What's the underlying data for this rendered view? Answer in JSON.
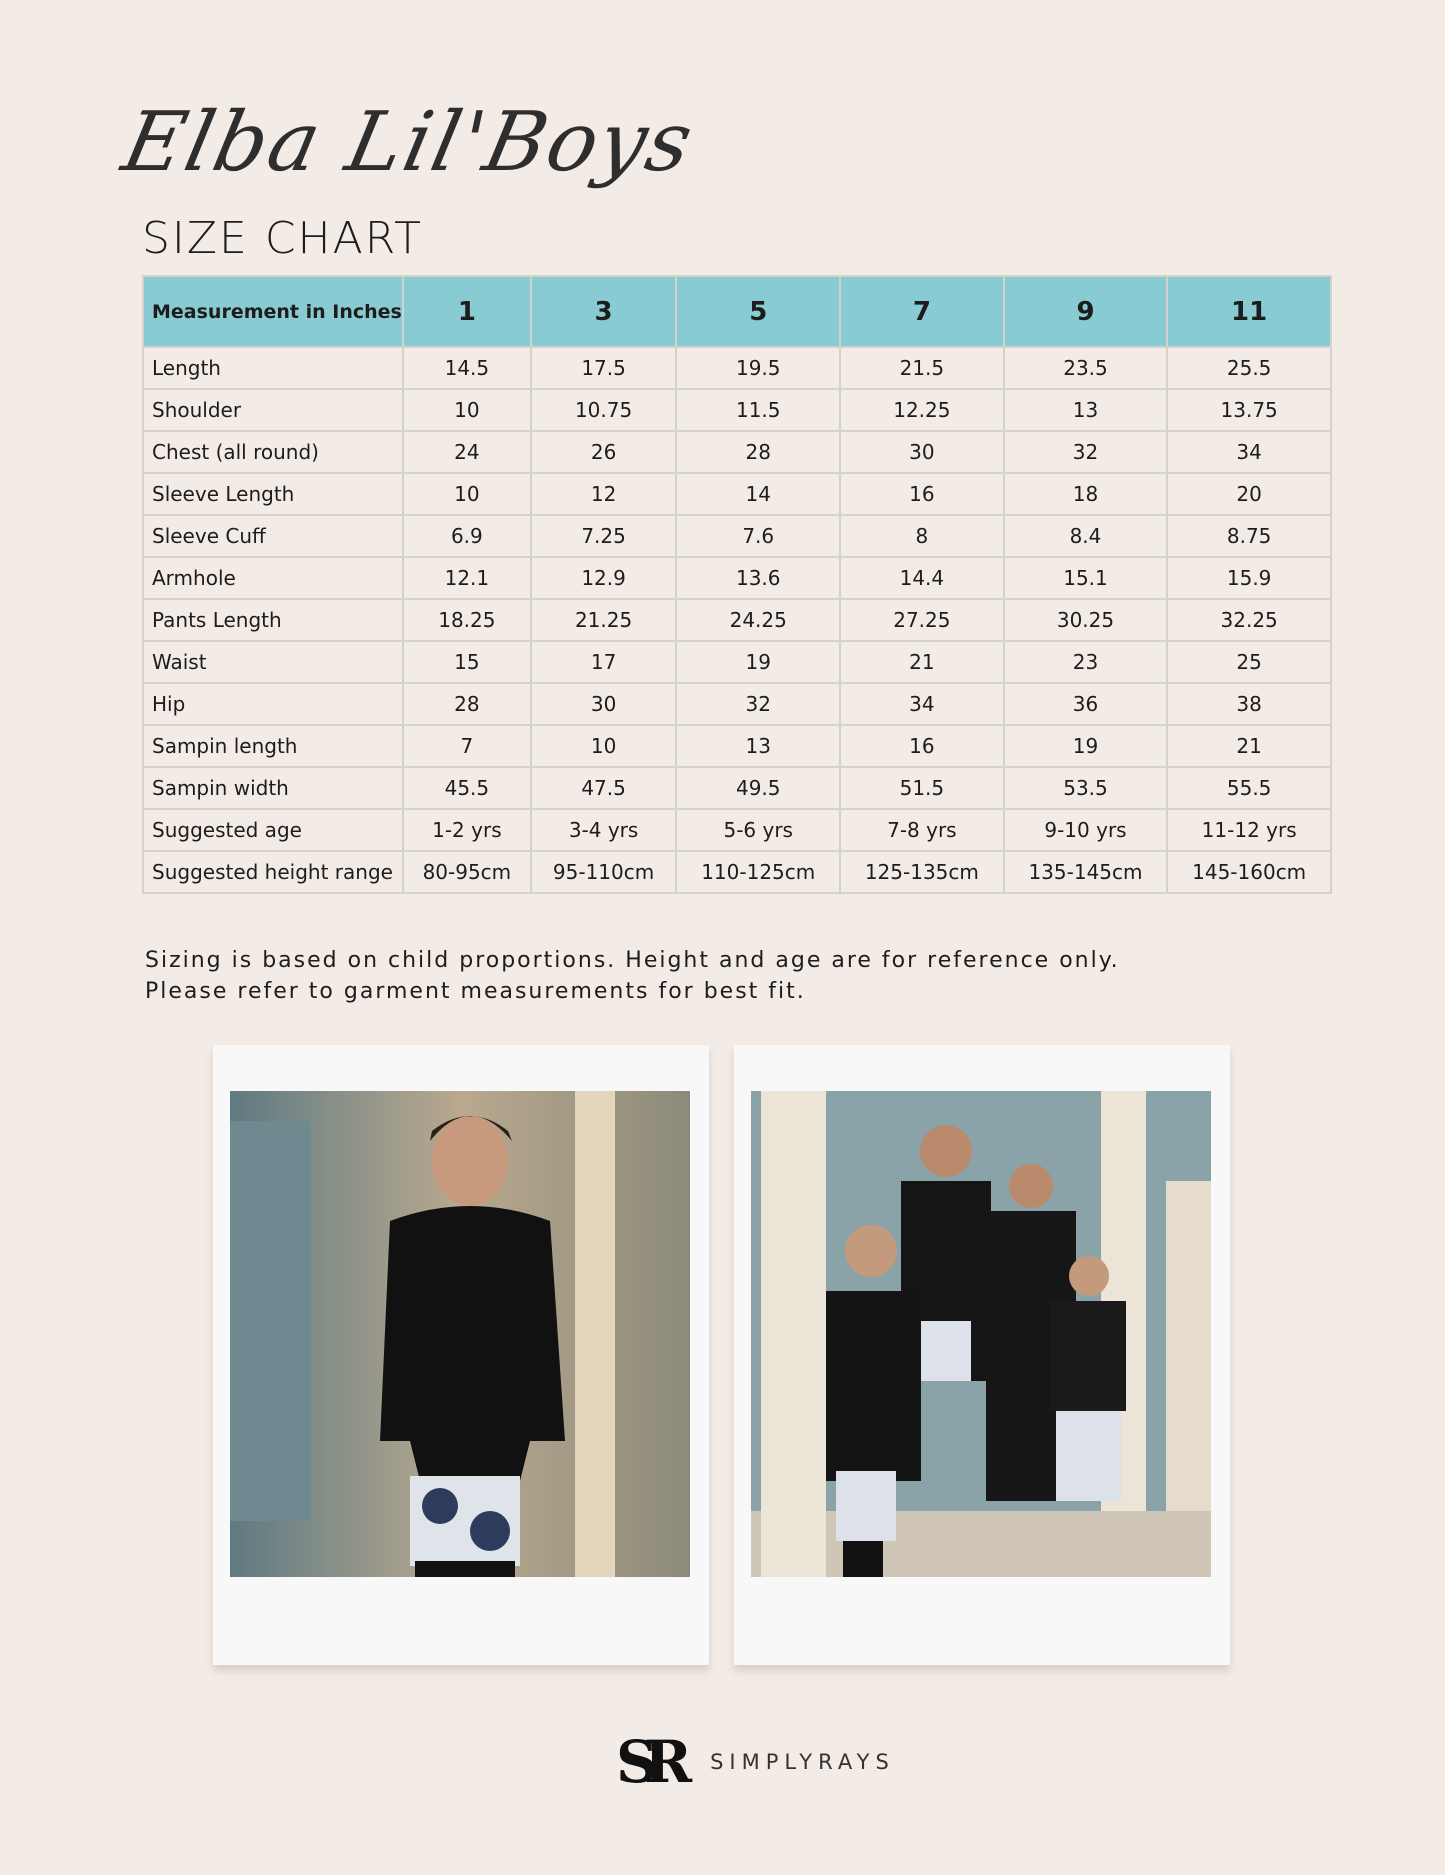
{
  "header": {
    "script_title": "Elba Lil'Boys",
    "subtitle": "SIZE CHART"
  },
  "table": {
    "columns": [
      "Measurement in Inches",
      "1",
      "3",
      "5",
      "7",
      "9",
      "11"
    ],
    "rows": [
      [
        "Length",
        "14.5",
        "17.5",
        "19.5",
        "21.5",
        "23.5",
        "25.5"
      ],
      [
        "Shoulder",
        "10",
        "10.75",
        "11.5",
        "12.25",
        "13",
        "13.75"
      ],
      [
        "Chest (all round)",
        "24",
        "26",
        "28",
        "30",
        "32",
        "34"
      ],
      [
        "Sleeve Length",
        "10",
        "12",
        "14",
        "16",
        "18",
        "20"
      ],
      [
        "Sleeve Cuff",
        "6.9",
        "7.25",
        "7.6",
        "8",
        "8.4",
        "8.75"
      ],
      [
        "Armhole",
        "12.1",
        "12.9",
        "13.6",
        "14.4",
        "15.1",
        "15.9"
      ],
      [
        "Pants Length",
        "18.25",
        "21.25",
        "24.25",
        "27.25",
        "30.25",
        "32.25"
      ],
      [
        "Waist",
        "15",
        "17",
        "19",
        "21",
        "23",
        "25"
      ],
      [
        "Hip",
        "28",
        "30",
        "32",
        "34",
        "36",
        "38"
      ],
      [
        "Sampin length",
        "7",
        "10",
        "13",
        "16",
        "19",
        "21"
      ],
      [
        "Sampin width",
        "45.5",
        "47.5",
        "49.5",
        "51.5",
        "53.5",
        "55.5"
      ],
      [
        "Suggested age",
        "1-2 yrs",
        "3-4 yrs",
        "5-6 yrs",
        "7-8 yrs",
        "9-10 yrs",
        "11-12 yrs"
      ],
      [
        "Suggested height range",
        "80-95cm",
        "95-110cm",
        "110-125cm",
        "125-135cm",
        "135-145cm",
        "145-160cm"
      ]
    ],
    "header_color": "#88cbd2"
  },
  "note": {
    "line1": "Sizing is based on child proportions. Height and age are for reference only.",
    "line2": "Please refer to garment measurements for best fit."
  },
  "brand": {
    "mark": "SR",
    "name": "SIMPLYRAYS"
  }
}
